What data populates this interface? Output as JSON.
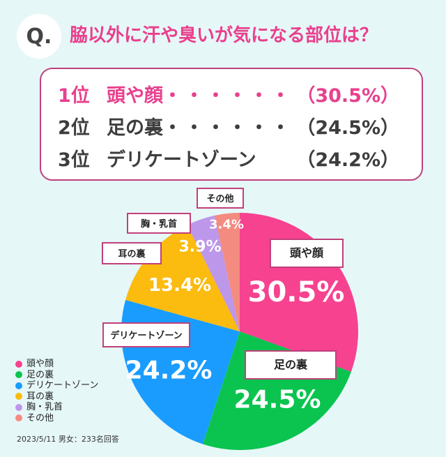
{
  "question": {
    "marker": "Q.",
    "text": "脇以外に汗や臭いが気になる部位は？"
  },
  "ranking": [
    {
      "rank": "1位",
      "label": "頭や顔",
      "dots": "・・・・・・",
      "value": "（30.5%）"
    },
    {
      "rank": "2位",
      "label": "足の裏",
      "dots": "・・・・・・",
      "value": "（24.5%）"
    },
    {
      "rank": "3位",
      "label": "デリケートゾーン",
      "dots": "",
      "value": "（24.2%）"
    }
  ],
  "chart_data": {
    "type": "pie",
    "title": "",
    "slices": [
      {
        "name": "頭や顔",
        "value": 30.5,
        "label": "30.5%",
        "color": "#f6428f"
      },
      {
        "name": "足の裏",
        "value": 24.5,
        "label": "24.5%",
        "color": "#0ac44f"
      },
      {
        "name": "デリケートゾーン",
        "value": 24.2,
        "label": "24.2%",
        "color": "#1a9cff"
      },
      {
        "name": "耳の裏",
        "value": 13.4,
        "label": "13.4%",
        "color": "#fbbb0f"
      },
      {
        "name": "胸・乳首",
        "value": 3.9,
        "label": "3.9%",
        "color": "#bd97ea"
      },
      {
        "name": "その他",
        "value": 3.4,
        "label": "3.4%",
        "color": "#f48b80"
      }
    ],
    "legend_position": "bottom-left"
  },
  "source": "2023/5/11 男女：233名回答"
}
